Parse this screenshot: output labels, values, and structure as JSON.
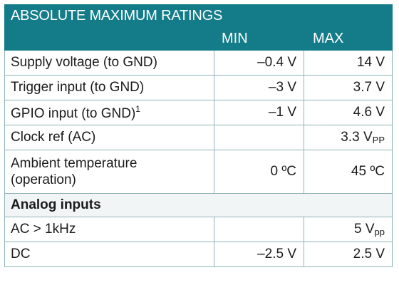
{
  "table": {
    "title": "ABSOLUTE MAXIMUM RATINGS",
    "col_min": "MIN",
    "col_max": "MAX",
    "rows": [
      {
        "param": "Supply voltage (to GND)",
        "min": "–0.4 V",
        "max": "14 V"
      },
      {
        "param": "Trigger input (to GND)",
        "min": "–3 V",
        "max": "3.7 V"
      },
      {
        "param": "GPIO input (to GND)",
        "param_sup": "1",
        "min": "–1 V",
        "max": "4.6 V"
      },
      {
        "param": "Clock ref (AC)",
        "min": "",
        "max": "3.3 V",
        "max_sub": "PP"
      },
      {
        "param": "Ambient temperature\n(operation)",
        "min": "0 ºC",
        "max": "45 ºC"
      }
    ],
    "section": "Analog inputs",
    "analog_rows": [
      {
        "param": "AC > 1kHz",
        "min": "",
        "max": "5 V",
        "max_sub": "pp"
      },
      {
        "param": "DC",
        "min": "–2.5 V",
        "max": "2.5 V"
      }
    ]
  },
  "colors": {
    "header_bg": "#147c89",
    "border": "#8fb3b8"
  }
}
